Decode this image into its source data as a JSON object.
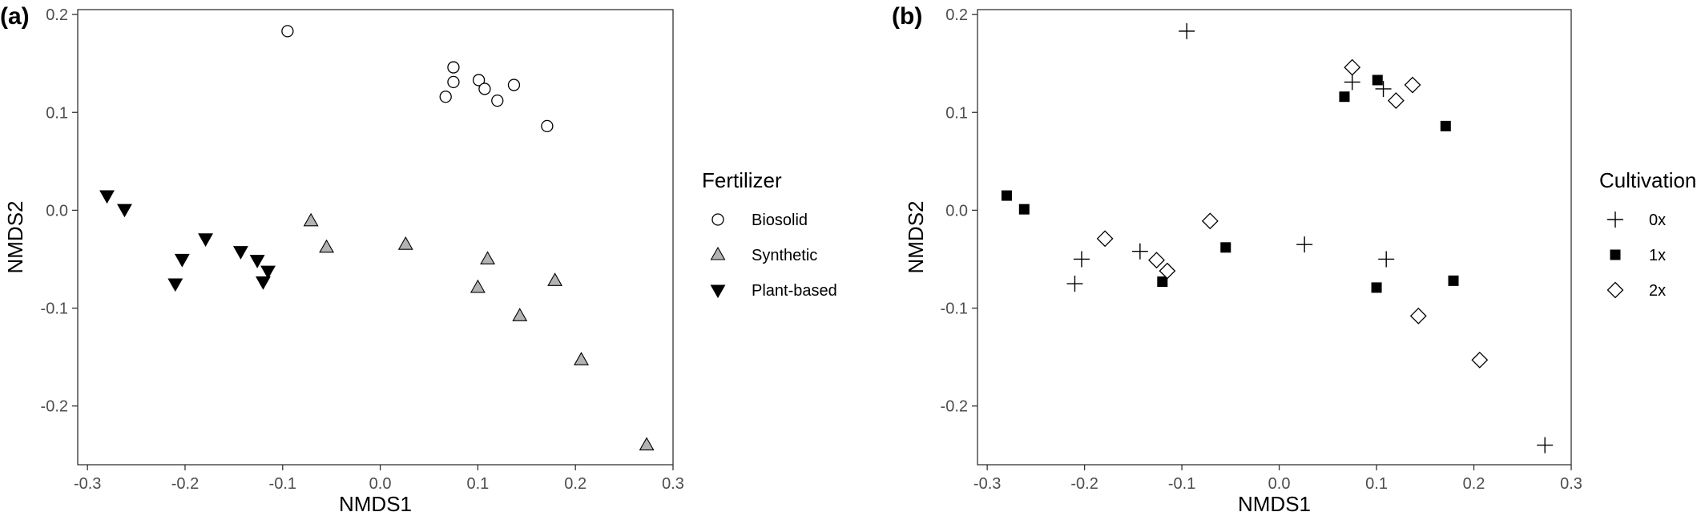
{
  "chart_data": [
    {
      "type": "scatter",
      "panel_label": "(a)",
      "xlabel": "NMDS1",
      "ylabel": "NMDS2",
      "xlim": [
        -0.31,
        0.3
      ],
      "ylim": [
        -0.26,
        0.205
      ],
      "xticks": [
        -0.3,
        -0.2,
        -0.1,
        0.0,
        0.1,
        0.2,
        0.3
      ],
      "xtick_labels": [
        "-0.3",
        "-0.2",
        "-0.1",
        "0.0",
        "0.1",
        "0.2",
        "0.3"
      ],
      "yticks": [
        -0.2,
        -0.1,
        0.0,
        0.1,
        0.2
      ],
      "ytick_labels": [
        "-0.2",
        "-0.1",
        "0.0",
        "0.1",
        "0.2"
      ],
      "grid": false,
      "legend_position": "right",
      "legend_title": "Fertilizer",
      "series": [
        {
          "name": "Biosolid",
          "marker": "circle-open",
          "color": "#000000",
          "points": [
            [
              -0.095,
              0.183
            ],
            [
              0.075,
              0.146
            ],
            [
              0.075,
              0.131
            ],
            [
              0.101,
              0.133
            ],
            [
              0.137,
              0.128
            ],
            [
              0.067,
              0.116
            ],
            [
              0.107,
              0.124
            ],
            [
              0.12,
              0.112
            ],
            [
              0.171,
              0.086
            ]
          ]
        },
        {
          "name": "Synthetic",
          "marker": "triangle-up-filled",
          "color": "#b3b3b3",
          "points": [
            [
              -0.071,
              -0.011
            ],
            [
              -0.055,
              -0.038
            ],
            [
              0.026,
              -0.035
            ],
            [
              0.11,
              -0.05
            ],
            [
              0.1,
              -0.079
            ],
            [
              0.179,
              -0.072
            ],
            [
              0.143,
              -0.108
            ],
            [
              0.206,
              -0.153
            ],
            [
              0.273,
              -0.24
            ]
          ]
        },
        {
          "name": "Plant-based",
          "marker": "triangle-down-filled",
          "color": "#000000",
          "points": [
            [
              -0.28,
              0.015
            ],
            [
              -0.262,
              0.001
            ],
            [
              -0.179,
              -0.029
            ],
            [
              -0.203,
              -0.05
            ],
            [
              -0.21,
              -0.075
            ],
            [
              -0.143,
              -0.042
            ],
            [
              -0.126,
              -0.051
            ],
            [
              -0.115,
              -0.062
            ],
            [
              -0.12,
              -0.073
            ]
          ]
        }
      ]
    },
    {
      "type": "scatter",
      "panel_label": "(b)",
      "xlabel": "NMDS1",
      "ylabel": "NMDS2",
      "xlim": [
        -0.31,
        0.3
      ],
      "ylim": [
        -0.26,
        0.205
      ],
      "xticks": [
        -0.3,
        -0.2,
        -0.1,
        0.0,
        0.1,
        0.2,
        0.3
      ],
      "xtick_labels": [
        "-0.3",
        "-0.2",
        "-0.1",
        "0.0",
        "0.1",
        "0.2",
        "0.3"
      ],
      "yticks": [
        -0.2,
        -0.1,
        0.0,
        0.1,
        0.2
      ],
      "ytick_labels": [
        "-0.2",
        "-0.1",
        "0.0",
        "0.1",
        "0.2"
      ],
      "grid": false,
      "legend_position": "right",
      "legend_title": "Cultivation",
      "series": [
        {
          "name": "0x",
          "marker": "plus",
          "color": "#000000",
          "points": [
            [
              -0.095,
              0.183
            ],
            [
              0.075,
              0.131
            ],
            [
              0.107,
              0.124
            ],
            [
              -0.21,
              -0.075
            ],
            [
              -0.203,
              -0.05
            ],
            [
              -0.143,
              -0.042
            ],
            [
              0.026,
              -0.035
            ],
            [
              0.11,
              -0.05
            ],
            [
              0.273,
              -0.24
            ]
          ]
        },
        {
          "name": "1x",
          "marker": "square-filled",
          "color": "#000000",
          "points": [
            [
              0.101,
              0.133
            ],
            [
              0.067,
              0.116
            ],
            [
              0.171,
              0.086
            ],
            [
              -0.28,
              0.015
            ],
            [
              -0.262,
              0.001
            ],
            [
              -0.055,
              -0.038
            ],
            [
              -0.12,
              -0.073
            ],
            [
              0.1,
              -0.079
            ],
            [
              0.179,
              -0.072
            ]
          ]
        },
        {
          "name": "2x",
          "marker": "diamond-open",
          "color": "#000000",
          "points": [
            [
              0.075,
              0.146
            ],
            [
              0.137,
              0.128
            ],
            [
              0.12,
              0.112
            ],
            [
              -0.179,
              -0.029
            ],
            [
              -0.071,
              -0.011
            ],
            [
              -0.126,
              -0.051
            ],
            [
              -0.115,
              -0.062
            ],
            [
              0.143,
              -0.108
            ],
            [
              0.206,
              -0.153
            ]
          ]
        }
      ]
    }
  ]
}
